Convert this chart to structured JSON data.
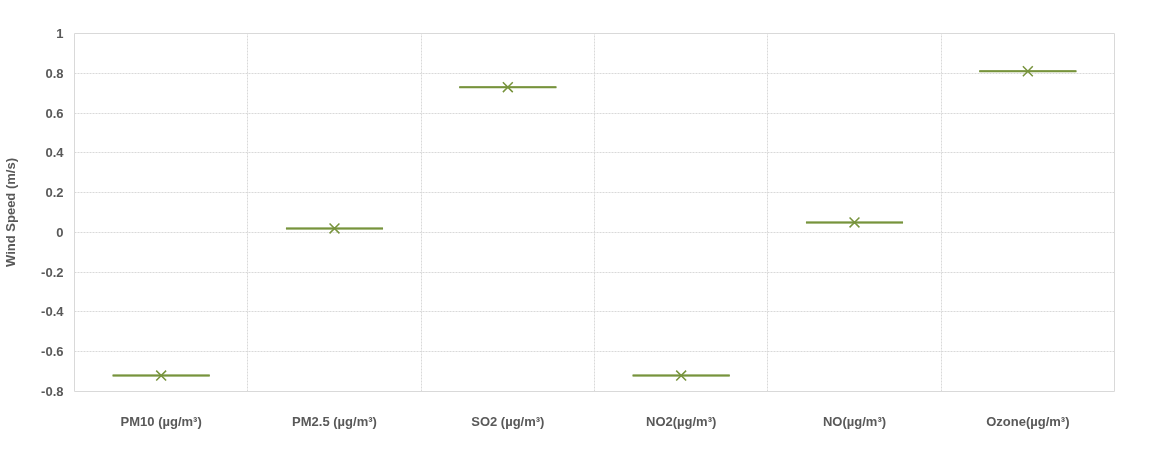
{
  "chart_data": {
    "type": "box",
    "ylabel": "Wind Speed (m/s)",
    "categories": [
      "PM10 (µg/m³)",
      "PM2.5 (µg/m³)",
      "SO2 (µg/m³)",
      "NO2(µg/m³)",
      "NO(µg/m³)",
      "Ozone(µg/m³)"
    ],
    "series": [
      {
        "color": "#77933c",
        "boxes": [
          {
            "low": -0.72,
            "q1": -0.72,
            "median": -0.72,
            "q3": -0.72,
            "high": -0.72,
            "mean": -0.72
          },
          {
            "low": 0.02,
            "q1": 0.02,
            "median": 0.02,
            "q3": 0.02,
            "high": 0.02,
            "mean": 0.02
          },
          {
            "low": 0.73,
            "q1": 0.73,
            "median": 0.73,
            "q3": 0.73,
            "high": 0.73,
            "mean": 0.73
          },
          {
            "low": -0.72,
            "q1": -0.72,
            "median": -0.72,
            "q3": -0.72,
            "high": -0.72,
            "mean": -0.72
          },
          {
            "low": 0.05,
            "q1": 0.05,
            "median": 0.05,
            "q3": 0.05,
            "high": 0.05,
            "mean": 0.05
          },
          {
            "low": 0.81,
            "q1": 0.81,
            "median": 0.81,
            "q3": 0.81,
            "high": 0.81,
            "mean": 0.81
          }
        ]
      }
    ],
    "ylim": [
      -0.8,
      1
    ],
    "yticks": [
      -0.8,
      -0.6,
      -0.4,
      -0.2,
      0,
      0.2,
      0.4,
      0.6,
      0.8,
      1
    ],
    "grid": true
  }
}
